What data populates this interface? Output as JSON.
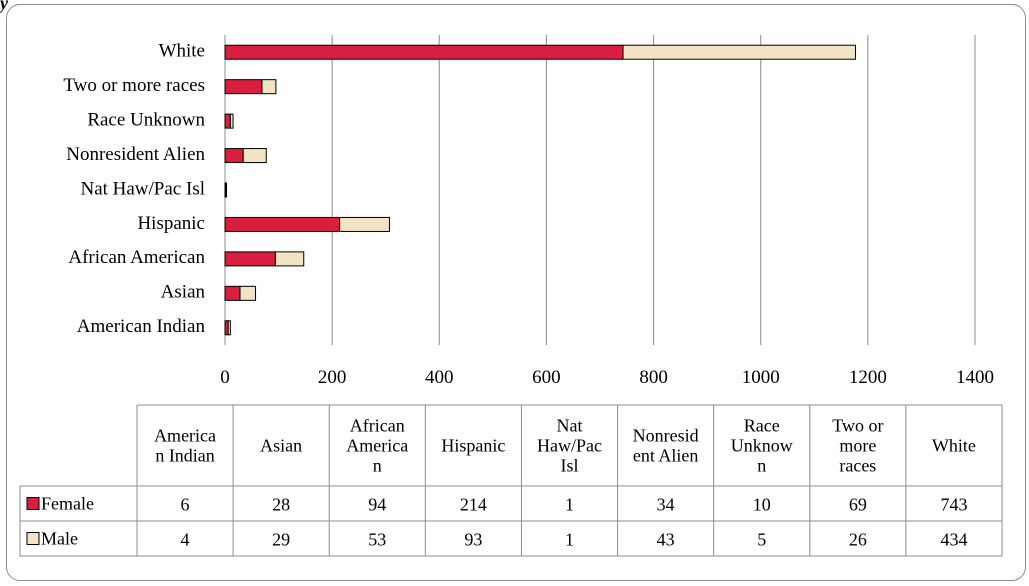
{
  "corner_text": "y",
  "chart_data": {
    "type": "bar",
    "orientation": "horizontal",
    "stacked": true,
    "categories": [
      "American Indian",
      "Asian",
      "African American",
      "Hispanic",
      "Nat Haw/Pac Isl",
      "Nonresident Alien",
      "Race Unknown",
      "Two or more races",
      "White"
    ],
    "table_headers": [
      "America n Indian",
      "Asian",
      "African America n",
      "Hispanic",
      "Nat Haw/Pac Isl",
      "Nonresid ent Alien",
      "Race Unknow n",
      "Two or more races",
      "White"
    ],
    "series": [
      {
        "name": "Female",
        "color": "#d91f3f",
        "values": [
          6,
          28,
          94,
          214,
          1,
          34,
          10,
          69,
          743
        ]
      },
      {
        "name": "Male",
        "color": "#f1e4c5",
        "values": [
          4,
          29,
          53,
          93,
          1,
          43,
          5,
          26,
          434
        ]
      }
    ],
    "xlim": [
      0,
      1400
    ],
    "xticks": [
      0,
      200,
      400,
      600,
      800,
      1000,
      1200,
      1400
    ],
    "grid": true,
    "legend": "data-table",
    "title": "",
    "xlabel": "",
    "ylabel": ""
  }
}
